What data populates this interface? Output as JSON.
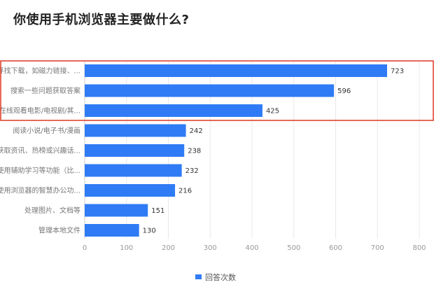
{
  "title": "你使用手机浏览器主要做什么?",
  "colors": {
    "bar": "#2f7bf5",
    "highlight_box": "#e0452e",
    "grid": "#e8e8e8",
    "axis": "#cccccc"
  },
  "chart_data": {
    "type": "bar",
    "orientation": "horizontal",
    "categories": [
      "寻找下载，如磁力链接、...",
      "搜索一些问题获取答案",
      "在线观看电影/电视剧/其...",
      "阅读小说/电子书/漫画",
      "获取资讯、热榜或兴趣话...",
      "使用辅助学习等功能（比...",
      "使用浏览器的智慧办公功...",
      "处理图片、文档等",
      "管理本地文件"
    ],
    "series": [
      {
        "name": "回答次数",
        "values": [
          723,
          596,
          425,
          242,
          238,
          232,
          216,
          151,
          130
        ]
      }
    ],
    "xlim": [
      0,
      800
    ],
    "ticks": [
      0,
      100,
      200,
      300,
      400,
      500,
      600,
      700,
      800
    ],
    "grid": true,
    "legend_position": "bottom-center",
    "highlighted_categories": [
      0,
      1,
      2
    ]
  }
}
